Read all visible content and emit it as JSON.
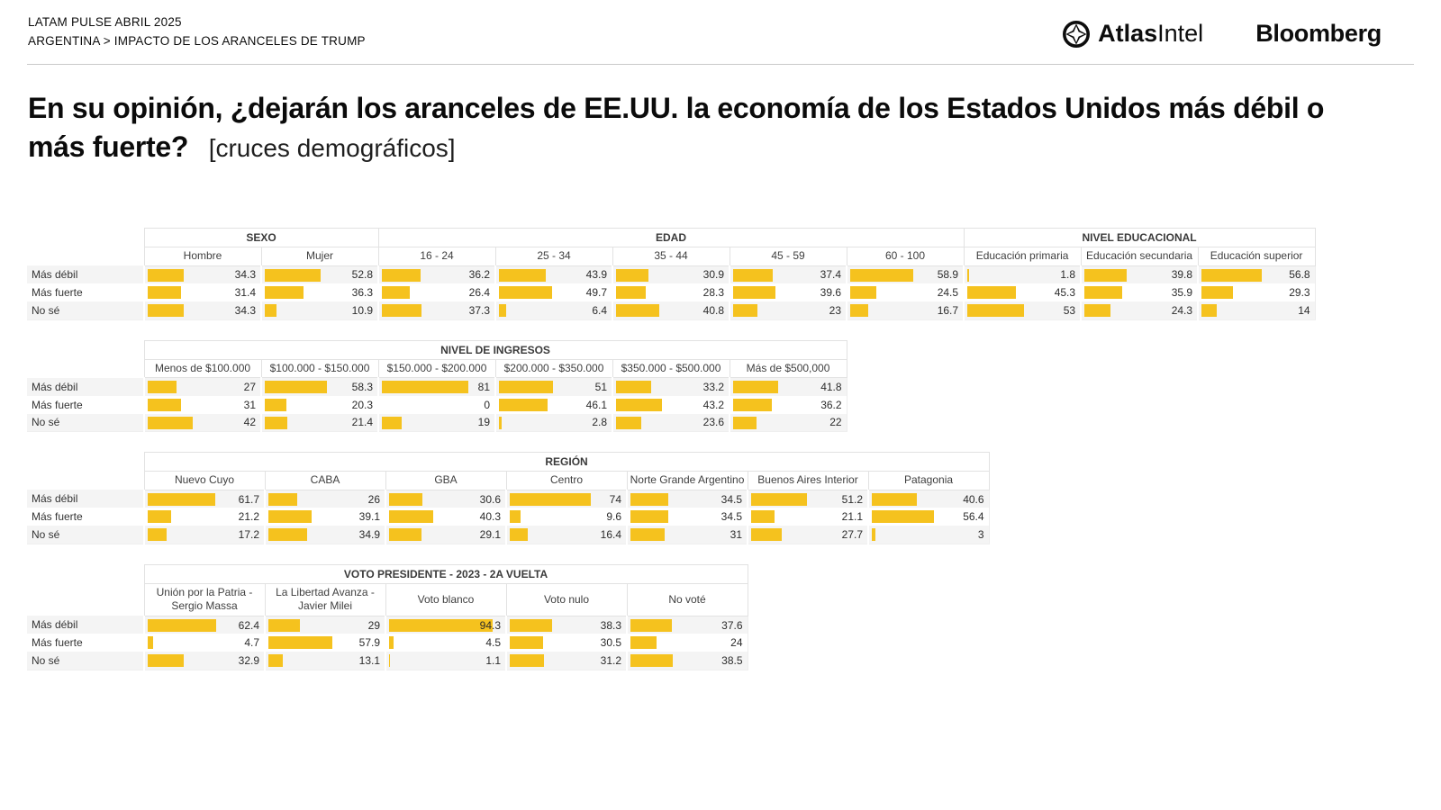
{
  "header": {
    "kicker_line1": "LATAM PULSE ABRIL 2025",
    "kicker_line2": "ARGENTINA > IMPACTO DE LOS ARANCELES DE TRUMP",
    "atlas_logo_bold": "Atlas",
    "atlas_logo_light": "Intel",
    "bloomberg_logo": "Bloomberg"
  },
  "title": {
    "question": "En su opinión, ¿dejarán los aranceles de EE.UU. la economía de los Estados Unidos más débil o más fuerte?",
    "note": "[cruces demográficos]"
  },
  "colors": {
    "bar": "#F5C21E",
    "row_stripe": "#F4F4F4",
    "header_border": "#E2E2E2"
  },
  "row_labels": [
    "Más débil",
    "Más fuerte",
    "No sé"
  ],
  "chart_data": [
    {
      "type": "bar",
      "title": "SEXO / EDAD / NIVEL EDUCACIONAL",
      "xlim": [
        0,
        100
      ],
      "groups": [
        {
          "label": "SEXO",
          "categories": [
            "Hombre",
            "Mujer"
          ]
        },
        {
          "label": "EDAD",
          "categories": [
            "16 - 24",
            "25 - 34",
            "35 - 44",
            "45 - 59",
            "60 - 100"
          ]
        },
        {
          "label": "NIVEL EDUCACIONAL",
          "categories": [
            "Educación primaria",
            "Educación secundaria",
            "Educación superior"
          ]
        }
      ],
      "series": [
        {
          "name": "Más débil",
          "values": [
            34.3,
            52.8,
            36.2,
            43.9,
            30.9,
            37.4,
            58.9,
            1.8,
            39.8,
            56.8
          ]
        },
        {
          "name": "Más fuerte",
          "values": [
            31.4,
            36.3,
            26.4,
            49.7,
            28.3,
            39.6,
            24.5,
            45.3,
            35.9,
            29.3
          ]
        },
        {
          "name": "No sé",
          "values": [
            34.3,
            10.9,
            37.3,
            6.4,
            40.8,
            23,
            16.7,
            53,
            24.3,
            14
          ]
        }
      ]
    },
    {
      "type": "bar",
      "title": "NIVEL DE INGRESOS",
      "xlim": [
        0,
        100
      ],
      "groups": [
        {
          "label": "NIVEL DE INGRESOS",
          "categories": [
            "Menos de $100.000",
            "$100.000 - $150.000",
            "$150.000 - $200.000",
            "$200.000 - $350.000",
            "$350.000 - $500.000",
            "Más de $500,000"
          ]
        }
      ],
      "series": [
        {
          "name": "Más débil",
          "values": [
            27,
            58.3,
            81,
            51,
            33.2,
            41.8
          ]
        },
        {
          "name": "Más fuerte",
          "values": [
            31,
            20.3,
            0,
            46.1,
            43.2,
            36.2
          ]
        },
        {
          "name": "No sé",
          "values": [
            42,
            21.4,
            19,
            2.8,
            23.6,
            22
          ]
        }
      ]
    },
    {
      "type": "bar",
      "title": "REGIÓN",
      "xlim": [
        0,
        100
      ],
      "groups": [
        {
          "label": "REGIÓN",
          "categories": [
            "Nuevo Cuyo",
            "CABA",
            "GBA",
            "Centro",
            "Norte Grande Argentino",
            "Buenos Aires Interior",
            "Patagonia"
          ]
        }
      ],
      "series": [
        {
          "name": "Más débil",
          "values": [
            61.7,
            26,
            30.6,
            74,
            34.5,
            51.2,
            40.6
          ]
        },
        {
          "name": "Más fuerte",
          "values": [
            21.2,
            39.1,
            40.3,
            9.6,
            34.5,
            21.1,
            56.4
          ]
        },
        {
          "name": "No sé",
          "values": [
            17.2,
            34.9,
            29.1,
            16.4,
            31,
            27.7,
            3
          ]
        }
      ]
    },
    {
      "type": "bar",
      "title": "VOTO PRESIDENTE - 2023 - 2A VUELTA",
      "xlim": [
        0,
        100
      ],
      "groups": [
        {
          "label": "VOTO PRESIDENTE - 2023 - 2A VUELTA",
          "categories": [
            "Unión por la Patria - Sergio Massa",
            "La Libertad Avanza - Javier Milei",
            "Voto blanco",
            "Voto nulo",
            "No voté"
          ]
        }
      ],
      "series": [
        {
          "name": "Más débil",
          "values": [
            62.4,
            29,
            94.3,
            38.3,
            37.6
          ]
        },
        {
          "name": "Más fuerte",
          "values": [
            4.7,
            57.9,
            4.5,
            30.5,
            24
          ]
        },
        {
          "name": "No sé",
          "values": [
            32.9,
            13.1,
            1.1,
            31.2,
            38.5
          ]
        }
      ]
    }
  ]
}
